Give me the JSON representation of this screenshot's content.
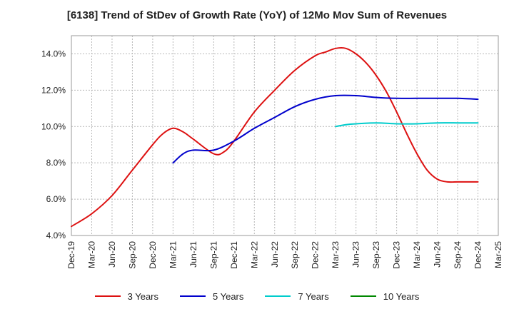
{
  "chart_data": {
    "type": "line",
    "title": "[6138]  Trend of StDev of Growth Rate (YoY) of 12Mo Mov Sum of Revenues",
    "xlabel": "",
    "ylabel": "",
    "ylim": [
      4.0,
      15.0
    ],
    "yticks": [
      4.0,
      6.0,
      8.0,
      10.0,
      12.0,
      14.0
    ],
    "ytick_labels": [
      "4.0%",
      "6.0%",
      "8.0%",
      "10.0%",
      "12.0%",
      "14.0%"
    ],
    "x_tick_labels": [
      "Dec-19",
      "Mar-20",
      "Jun-20",
      "Sep-20",
      "Dec-20",
      "Mar-21",
      "Jun-21",
      "Sep-21",
      "Dec-21",
      "Mar-22",
      "Jun-22",
      "Sep-22",
      "Dec-22",
      "Mar-23",
      "Jun-23",
      "Sep-23",
      "Dec-23",
      "Mar-24",
      "Jun-24",
      "Sep-24",
      "Dec-24",
      "Mar-25"
    ],
    "x_start": "Dec-19",
    "x_step_months": 3,
    "grid": true,
    "legend_position": "bottom",
    "series": [
      {
        "name": "3 Years",
        "color": "#dd1111",
        "x_index": [
          0,
          1,
          2,
          3,
          4,
          4.5,
          5,
          5.5,
          6,
          7,
          7.5,
          8,
          9,
          10,
          11,
          12,
          12.5,
          13,
          13.5,
          14,
          14.5,
          15,
          15.5,
          16,
          16.5,
          17,
          17.5,
          18,
          18.5,
          19,
          20
        ],
        "values": [
          4.5,
          5.2,
          6.2,
          7.6,
          9.0,
          9.6,
          9.9,
          9.7,
          9.3,
          8.5,
          8.6,
          9.2,
          10.8,
          12.0,
          13.1,
          13.9,
          14.1,
          14.3,
          14.3,
          14.0,
          13.5,
          12.8,
          11.9,
          10.8,
          9.6,
          8.5,
          7.6,
          7.1,
          6.95,
          6.95,
          6.95
        ]
      },
      {
        "name": "5 Years",
        "color": "#0000cc",
        "x_index": [
          5,
          5.5,
          6,
          7,
          8,
          9,
          10,
          11,
          12,
          13,
          14,
          15,
          16,
          17,
          18,
          19,
          20
        ],
        "values": [
          8.0,
          8.5,
          8.7,
          8.7,
          9.2,
          9.9,
          10.5,
          11.1,
          11.5,
          11.7,
          11.7,
          11.6,
          11.55,
          11.55,
          11.55,
          11.55,
          11.5
        ]
      },
      {
        "name": "7 Years",
        "color": "#00cccc",
        "x_index": [
          13,
          13.5,
          14,
          15,
          16,
          17,
          18,
          19,
          20
        ],
        "values": [
          10.0,
          10.1,
          10.15,
          10.2,
          10.15,
          10.15,
          10.2,
          10.2,
          10.2
        ]
      },
      {
        "name": "10 Years",
        "color": "#008800",
        "x_index": [],
        "values": []
      }
    ]
  }
}
